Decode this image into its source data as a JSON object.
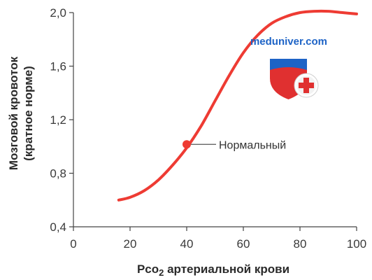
{
  "chart_data": {
    "type": "line",
    "ylabel_lines": [
      "Мозговой кровоток",
      "(кратное норме)"
    ],
    "xlabel_main": "Pco",
    "xlabel_sub": "2",
    "xlabel_rest": " артериальной крови",
    "xlim": [
      0,
      100
    ],
    "ylim": [
      0.4,
      2.0
    ],
    "xticks": [
      "0",
      "20",
      "40",
      "60",
      "80",
      "100"
    ],
    "yticks": [
      "0,4",
      "0,8",
      "1,2",
      "1,6",
      "2,0"
    ],
    "series": [
      {
        "color": "#ee3b33",
        "x": [
          16,
          20,
          25,
          30,
          35,
          40,
          45,
          50,
          55,
          60,
          65,
          70,
          75,
          80,
          85,
          90,
          95,
          100
        ],
        "y": [
          0.6,
          0.62,
          0.67,
          0.75,
          0.86,
          0.99,
          1.15,
          1.34,
          1.53,
          1.7,
          1.83,
          1.92,
          1.97,
          2.0,
          2.01,
          2.01,
          2.0,
          1.99
        ]
      }
    ],
    "annotation": {
      "label": "Нормальный",
      "x": 40,
      "y": 1.0
    },
    "grid": false
  },
  "watermark": {
    "text": "meduniver.com",
    "colors": {
      "shield_top": "#1d63c6",
      "shield_bottom": "#e03030",
      "cross": "#e03030"
    }
  }
}
